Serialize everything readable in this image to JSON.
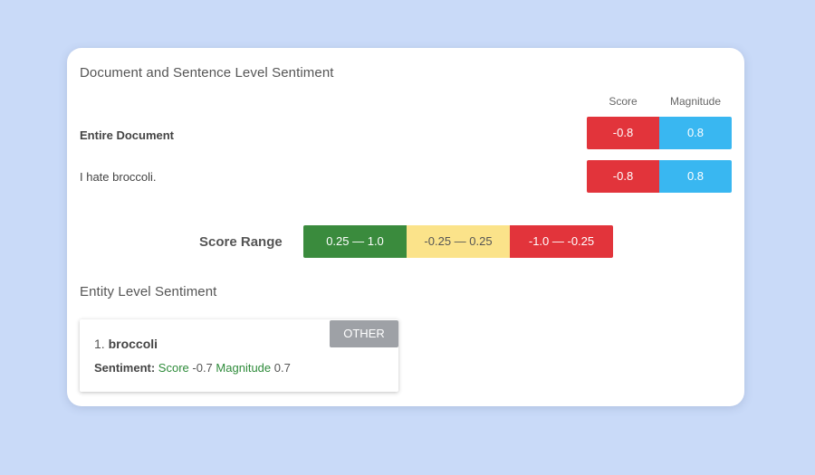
{
  "document_section": {
    "title": "Document and Sentence Level Sentiment",
    "col_score": "Score",
    "col_magnitude": "Magnitude",
    "rows": [
      {
        "label": "Entire Document",
        "score": "-0.8",
        "magnitude": "0.8"
      },
      {
        "label": "I hate broccoli.",
        "score": "-0.8",
        "magnitude": "0.8"
      }
    ]
  },
  "score_range": {
    "label": "Score Range",
    "positive": "0.25 — 1.0",
    "neutral": "-0.25 — 0.25",
    "negative": "-1.0 — -0.25"
  },
  "entity_section": {
    "title": "Entity Level Sentiment",
    "entities": [
      {
        "index": "1.",
        "name": "broccoli",
        "type": "OTHER",
        "sentiment_label": "Sentiment:",
        "score_label": "Score",
        "score": "-0.7",
        "magnitude_label": "Magnitude",
        "magnitude": "0.7"
      }
    ]
  },
  "colors": {
    "background": "#c9daf8",
    "score_negative": "#e2343b",
    "magnitude": "#39b7f1",
    "range_positive": "#3a8b3d",
    "range_neutral": "#fbe38a",
    "range_negative": "#e2343b",
    "badge": "#9ea1a6",
    "entity_green": "#2e8b3a"
  }
}
